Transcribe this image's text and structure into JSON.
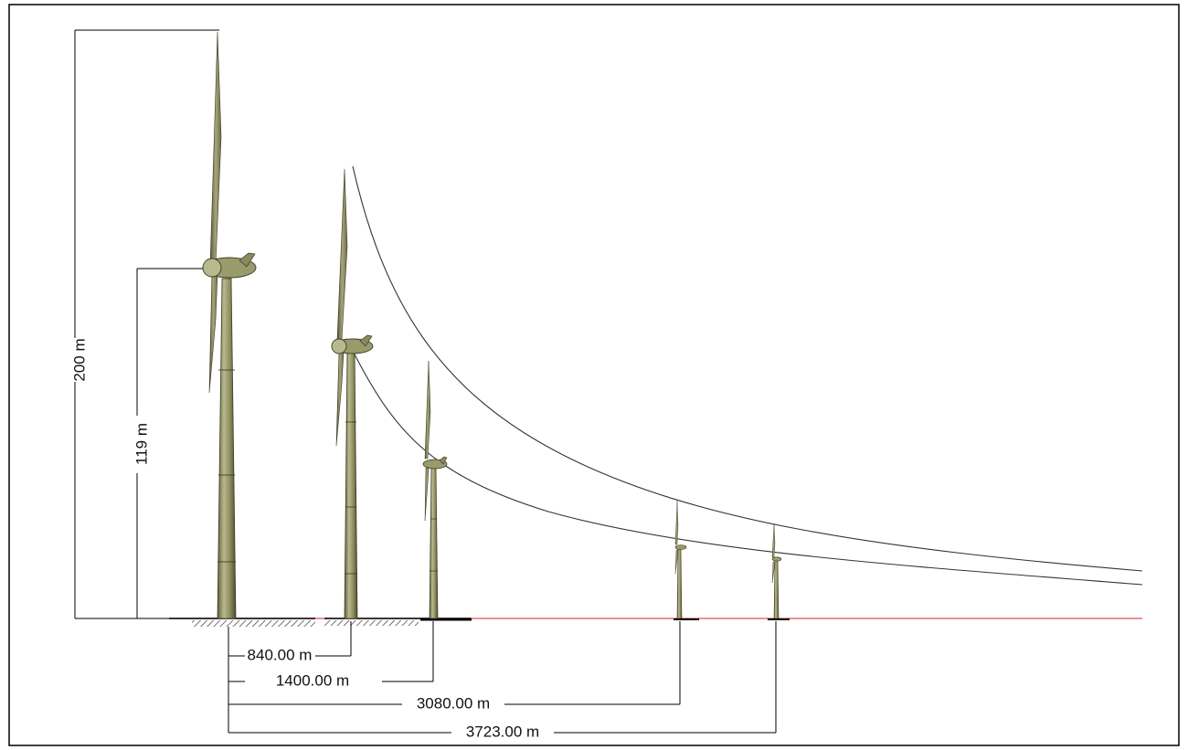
{
  "colors": {
    "frame": "#000000",
    "turbine_fill": "#8a8a5c",
    "turbine_shade": "#5e5e3c",
    "turbine_light": "#b9b98e",
    "ground_line": "#e05050",
    "curve": "#333333",
    "dimension": "#000000"
  },
  "heights": {
    "total": "200 m",
    "hub": "119 m"
  },
  "distances": [
    {
      "label": "840.00 m",
      "value": 840
    },
    {
      "label": "1400.00 m",
      "value": 1400
    },
    {
      "label": "3080.00 m",
      "value": 3080
    },
    {
      "label": "3723.00 m",
      "value": 3723
    }
  ],
  "turbines": [
    {
      "distance": 0,
      "apparent_scale": 1.0
    },
    {
      "distance": 840,
      "apparent_scale": 0.78
    },
    {
      "distance": 1400,
      "apparent_scale": 0.44
    },
    {
      "distance": 3080,
      "apparent_scale": 0.21
    },
    {
      "distance": 3723,
      "apparent_scale": 0.17
    }
  ]
}
